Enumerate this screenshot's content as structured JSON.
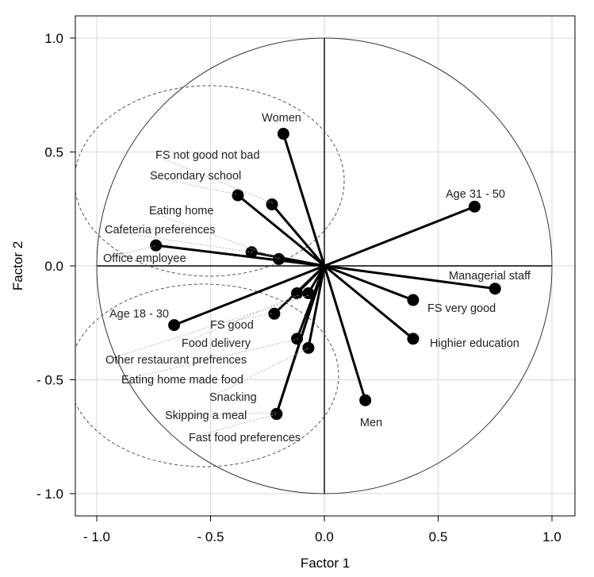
{
  "chart_data": {
    "type": "scatter",
    "xlabel": "Factor 1",
    "ylabel": "Factor 2",
    "xlim": [
      -1.1,
      1.1
    ],
    "ylim": [
      -1.1,
      1.1
    ],
    "x_ticks": [
      -1.0,
      -0.5,
      0.0,
      0.5,
      1.0
    ],
    "x_tick_labels": [
      "- 1.0",
      "- 0.5",
      "0.0",
      "0.5",
      "1.0"
    ],
    "y_ticks": [
      1.0,
      0.5,
      0.0,
      -0.5,
      -1.0
    ],
    "y_tick_labels": [
      "1.0",
      "0.5",
      "0.0",
      "- 0.5",
      "- 1.0"
    ],
    "grid": true,
    "unit_circle": true,
    "points": [
      {
        "label": "Women",
        "x": -0.18,
        "y": 0.58
      },
      {
        "label": "FS not good not bad",
        "x": -0.23,
        "y": 0.27
      },
      {
        "label": "Secondary school",
        "x": -0.38,
        "y": 0.31
      },
      {
        "label": "Eating home",
        "x": -0.2,
        "y": 0.03
      },
      {
        "label": "Cafeteria preferences",
        "x": -0.32,
        "y": 0.06
      },
      {
        "label": "Office employee",
        "x": -0.74,
        "y": 0.09
      },
      {
        "label": "Age 31 - 50",
        "x": 0.66,
        "y": 0.26
      },
      {
        "label": "Managerial staff",
        "x": 0.75,
        "y": -0.1
      },
      {
        "label": "FS very good",
        "x": 0.39,
        "y": -0.15
      },
      {
        "label": "Highier education",
        "x": 0.39,
        "y": -0.32
      },
      {
        "label": "Men",
        "x": 0.18,
        "y": -0.59
      },
      {
        "label": "Age 18 - 30",
        "x": -0.66,
        "y": -0.26
      },
      {
        "label": "FS good",
        "x": -0.22,
        "y": -0.21
      },
      {
        "label": "Food delivery",
        "x": -0.12,
        "y": -0.12
      },
      {
        "label": "Other restaurant prefrences",
        "x": -0.07,
        "y": -0.12
      },
      {
        "label": "Eating home made food",
        "x": -0.12,
        "y": -0.32
      },
      {
        "label": "Snacking",
        "x": -0.07,
        "y": -0.36
      },
      {
        "label": "Skipping a meal",
        "x": -0.21,
        "y": -0.65
      },
      {
        "label": "Fast food preferences",
        "x": -0.21,
        "y": -0.65
      }
    ]
  }
}
